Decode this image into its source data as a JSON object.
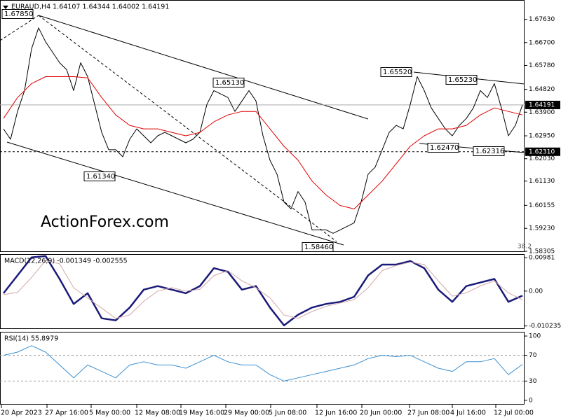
{
  "chart_data": [
    {
      "type": "line",
      "title": "EURAUD,H4  1.64107 1.64344 1.64002 1.64191",
      "watermark": "ActionForex.com",
      "xlim": [
        -0.5,
        74.3
      ],
      "ylim": [
        1.5828,
        1.6841
      ],
      "yticks": [
        {
          "value": 1.6763,
          "label": "1.67630"
        },
        {
          "value": 1.667,
          "label": "1.66700"
        },
        {
          "value": 1.6578,
          "label": "1.65780"
        },
        {
          "value": 1.6482,
          "label": "1.64820"
        },
        {
          "value": 1.639,
          "label": "1.63900"
        },
        {
          "value": 1.6295,
          "label": "1.62950"
        },
        {
          "value": 1.6203,
          "label": "1.62030"
        },
        {
          "value": 1.6113,
          "label": "1.61130"
        },
        {
          "value": 1.60155,
          "label": "1.60155"
        },
        {
          "value": 1.5923,
          "label": "1.59230"
        },
        {
          "value": 1.58305,
          "label": "1.58305"
        }
      ],
      "hlines": [
        {
          "value": 1.6231,
          "label": "1.62310"
        }
      ],
      "last_price": {
        "value": 1.64191,
        "label": "1.64191"
      },
      "annotations": [
        "1.67850",
        "1.61340",
        "1.65130",
        "1.58460",
        "1.65520",
        "1.65230",
        "1.62470",
        "1.62316",
        "38.2"
      ],
      "x": [
        0,
        1,
        2,
        3,
        4,
        5,
        6,
        7,
        8,
        9,
        10,
        11,
        12,
        13,
        14,
        15,
        16,
        17,
        18,
        19,
        20,
        21,
        22,
        23,
        24,
        25,
        26,
        27,
        28,
        29,
        30,
        31,
        32,
        33,
        34,
        35,
        36,
        37,
        38,
        39,
        40,
        41,
        42,
        43,
        44,
        45,
        46,
        47,
        48,
        49,
        50,
        51,
        52,
        53,
        54,
        55,
        56,
        57,
        58,
        59,
        60,
        61,
        62,
        63,
        64,
        65,
        66,
        67,
        68,
        69,
        70,
        71,
        72,
        73,
        74
      ],
      "series": [
        {
          "name": "EURAUD",
          "color": "#000000",
          "values": [
            1.6323,
            1.6281,
            1.6393,
            1.6477,
            1.6645,
            1.6729,
            1.6673,
            1.6631,
            1.6589,
            1.6561,
            1.6477,
            1.6589,
            1.6533,
            1.6421,
            1.6309,
            1.6239,
            1.6239,
            1.6211,
            1.6281,
            1.6323,
            1.6295,
            1.6267,
            1.6295,
            1.6309,
            1.6295,
            1.6281,
            1.6267,
            1.6281,
            1.6309,
            1.6421,
            1.6477,
            1.6463,
            1.6449,
            1.6393,
            1.6435,
            1.6477,
            1.6435,
            1.6295,
            1.6197,
            1.6141,
            1.6029,
            1.6001,
            1.6071,
            1.6029,
            1.5917,
            1.5917,
            1.5917,
            1.5903,
            1.5917,
            1.5931,
            1.5945,
            1.6029,
            1.6141,
            1.6169,
            1.6239,
            1.6309,
            1.6337,
            1.6323,
            1.6421,
            1.6533,
            1.6477,
            1.6407,
            1.6365,
            1.6323,
            1.6295,
            1.6337,
            1.6365,
            1.6407,
            1.6477,
            1.6449,
            1.6505,
            1.6407,
            1.6295,
            1.6337,
            1.64191
          ]
        },
        {
          "name": "MA",
          "color": "#e00000",
          "x": [
            0,
            2,
            4,
            6,
            8,
            10,
            12,
            14,
            16,
            18,
            20,
            22,
            24,
            26,
            28,
            30,
            32,
            34,
            36,
            38,
            40,
            42,
            44,
            46,
            48,
            50,
            52,
            54,
            56,
            58,
            60,
            62,
            64,
            66,
            68,
            70,
            72,
            74
          ],
          "values": [
            1.6365,
            1.6449,
            1.6505,
            1.6533,
            1.6533,
            1.6533,
            1.6528,
            1.6449,
            1.6379,
            1.6337,
            1.6323,
            1.6323,
            1.6309,
            1.6295,
            1.6309,
            1.6351,
            1.6379,
            1.6393,
            1.6393,
            1.6323,
            1.6253,
            1.6197,
            1.6113,
            1.6057,
            1.6015,
            1.6001,
            1.6057,
            1.6113,
            1.6183,
            1.6253,
            1.6295,
            1.6323,
            1.6323,
            1.6337,
            1.6379,
            1.6407,
            1.6393,
            1.6379
          ]
        }
      ]
    },
    {
      "type": "line",
      "title": "MACD(12,26,9) -0.001349 -0.002555",
      "xlim": [
        -0.5,
        74.3
      ],
      "ylim": [
        -0.01113,
        0.01086
      ],
      "yticks": [
        0.00981,
        {
          "value": 0,
          "label": "0.00"
        },
        -0.010235
      ],
      "x": [
        0,
        2,
        4,
        6,
        8,
        10,
        12,
        14,
        16,
        18,
        20,
        22,
        24,
        26,
        28,
        30,
        32,
        34,
        36,
        38,
        40,
        42,
        44,
        46,
        48,
        50,
        52,
        54,
        56,
        58,
        60,
        62,
        64,
        66,
        68,
        70,
        72,
        74
      ],
      "series": [
        {
          "name": "MACD",
          "color": "#1a1a7a",
          "values": [
            -0.00063,
            0.00462,
            0.00987,
            0.01029,
            0.00357,
            -0.00378,
            -0.00063,
            -0.00798,
            -0.00861,
            -0.00483,
            0.00042,
            0.00147,
            0.00042,
            -0.00063,
            0.00147,
            0.00672,
            0.00567,
            0.00042,
            0.00147,
            -0.00483,
            -0.01008,
            -0.00693,
            -0.00483,
            -0.00378,
            -0.00315,
            -0.00168,
            0.00462,
            0.00777,
            0.00777,
            0.00882,
            0.00672,
            0.00042,
            -0.00315,
            0.00147,
            0.00252,
            0.00357,
            -0.00315,
            -0.001349
          ]
        },
        {
          "name": "Signal",
          "color": "#d4a8a8",
          "values": [
            -0.001,
            -0.0004,
            0.004,
            0.009,
            0.008,
            0.001,
            -0.002,
            -0.005,
            -0.008,
            -0.007,
            -0.003,
            0,
            0.001,
            0,
            0.0005,
            0.0045,
            0.006,
            0.003,
            0.001,
            -0.002,
            -0.007,
            -0.008,
            -0.006,
            -0.0045,
            -0.0035,
            -0.0025,
            0.001,
            0.006,
            0.0075,
            0.0085,
            0.0078,
            0.003,
            -0.0015,
            -0.0005,
            0.0015,
            0.003,
            -0.0005,
            -0.002555
          ]
        }
      ]
    },
    {
      "type": "line",
      "title": "RSI(14) 55.8979",
      "xlim": [
        -0.5,
        74.3
      ],
      "ylim": [
        -6.6,
        106.6
      ],
      "yticks": [
        100,
        70,
        30,
        0
      ],
      "levels": [
        70,
        30
      ],
      "xticks": [
        {
          "value": -0.3,
          "label": "20 Apr 2023"
        },
        {
          "value": 6.2,
          "label": "27 Apr 16:00"
        },
        {
          "value": 12.5,
          "label": "5 May 00:00"
        },
        {
          "value": 19,
          "label": "12 May 08:00"
        },
        {
          "value": 25.3,
          "label": "19 May 16:00"
        },
        {
          "value": 31.7,
          "label": "29 May 00:00"
        },
        {
          "value": 38.1,
          "label": "5 Jun 08:00"
        },
        {
          "value": 44.7,
          "label": "12 Jun 16:00"
        },
        {
          "value": 51.1,
          "label": "20 Jun 00:00"
        },
        {
          "value": 57.9,
          "label": "27 Jun 08:00"
        },
        {
          "value": 64,
          "label": "4 Jul 16:00"
        },
        {
          "value": 70.2,
          "label": "12 Jul 00:00"
        }
      ],
      "x": [
        0,
        2,
        4,
        6,
        8,
        10,
        12,
        14,
        16,
        18,
        20,
        22,
        24,
        26,
        28,
        30,
        32,
        34,
        36,
        38,
        40,
        42,
        44,
        46,
        48,
        50,
        52,
        54,
        56,
        58,
        60,
        62,
        64,
        66,
        68,
        70,
        72,
        74
      ],
      "series": [
        {
          "name": "RSI",
          "color": "#3a8fd0",
          "values": [
            70,
            75,
            85,
            75,
            55,
            35,
            55,
            45,
            35,
            55,
            60,
            55,
            55,
            50,
            60,
            70,
            60,
            55,
            55,
            40,
            30,
            35,
            40,
            45,
            50,
            55,
            65,
            70,
            68,
            70,
            60,
            50,
            45,
            60,
            60,
            65,
            40,
            55.8979
          ]
        }
      ]
    }
  ]
}
